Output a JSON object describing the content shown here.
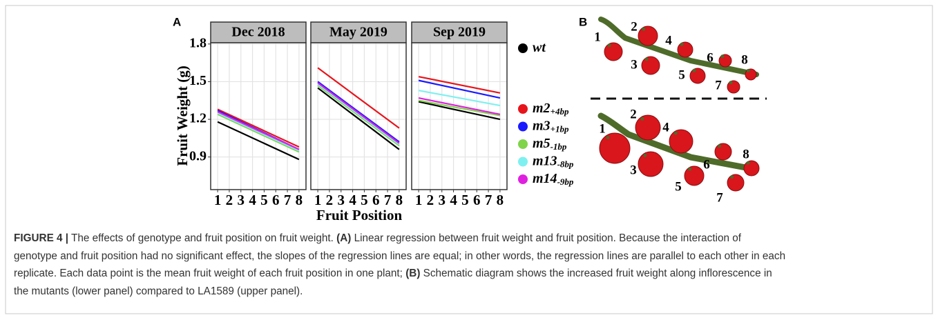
{
  "panel_labels": [
    "A",
    "B"
  ],
  "chart_data": {
    "type": "facet-regression",
    "ylabel": "Fruit Weight (g)",
    "xlabel": "Fruit Position",
    "ylim": [
      0.64,
      1.81
    ],
    "yticks": [
      0.9,
      1.2,
      1.5,
      1.8
    ],
    "xlim": [
      0.4,
      8.6
    ],
    "xticks": [
      1,
      2,
      3,
      4,
      5,
      6,
      7,
      8
    ],
    "grid": true,
    "series": [
      {
        "name": "wt",
        "subscript": null,
        "color": "#000000"
      },
      {
        "name": "m2",
        "subscript": "+4bp",
        "color": "#e8141b"
      },
      {
        "name": "m3",
        "subscript": "+1bp",
        "color": "#1a1aff"
      },
      {
        "name": "m5",
        "subscript": "-1bp",
        "color": "#7fd44a"
      },
      {
        "name": "m13",
        "subscript": "-8bp",
        "color": "#7ff0f0"
      },
      {
        "name": "m14",
        "subscript": "-9bp",
        "color": "#e020e0"
      }
    ],
    "facets": [
      {
        "title": "Dec 2018",
        "x": [
          1,
          8
        ],
        "values": [
          [
            1.18,
            0.88
          ],
          [
            1.28,
            0.98
          ],
          [
            1.27,
            0.96
          ],
          [
            1.24,
            0.94
          ],
          [
            1.25,
            0.95
          ],
          [
            1.26,
            0.96
          ]
        ]
      },
      {
        "title": "May 2019",
        "x": [
          1,
          8
        ],
        "values": [
          [
            1.45,
            0.96
          ],
          [
            1.61,
            1.13
          ],
          [
            1.5,
            1.02
          ],
          [
            1.47,
            0.99
          ],
          [
            1.48,
            1.0
          ],
          [
            1.49,
            1.01
          ]
        ]
      },
      {
        "title": "Sep 2019",
        "x": [
          1,
          8
        ],
        "values": [
          [
            1.34,
            1.2
          ],
          [
            1.54,
            1.41
          ],
          [
            1.51,
            1.37
          ],
          [
            1.35,
            1.23
          ],
          [
            1.43,
            1.31
          ],
          [
            1.37,
            1.24
          ]
        ]
      }
    ]
  },
  "diagram": {
    "upper_fruit_labels": [
      "1",
      "2",
      "3",
      "4",
      "5",
      "6",
      "7",
      "8"
    ],
    "lower_fruit_labels": [
      "1",
      "2",
      "3",
      "4",
      "5",
      "6",
      "7",
      "8"
    ]
  },
  "caption": {
    "lines": [
      [
        {
          "text": "FIGURE 4 |",
          "bold": true
        },
        {
          "text": " The effects of genotype and fruit position on fruit weight. ",
          "bold": false
        },
        {
          "text": "(A)",
          "bold": true
        },
        {
          "text": " Linear regression between fruit weight and fruit position. Because the interaction of",
          "bold": false
        }
      ],
      [
        {
          "text": "genotype and fruit position had no significant effect, the slopes of the regression lines are equal; in other words, the regression lines are parallel to each other in each",
          "bold": false
        }
      ],
      [
        {
          "text": "replicate. Each data point is the mean fruit weight of each fruit position in one plant; ",
          "bold": false
        },
        {
          "text": "(B)",
          "bold": true
        },
        {
          "text": " Schematic diagram shows the increased fruit weight along inflorescence in",
          "bold": false
        }
      ],
      [
        {
          "text": "the mutants (lower panel) compared to LA1589 (upper panel).",
          "bold": false
        }
      ]
    ]
  }
}
